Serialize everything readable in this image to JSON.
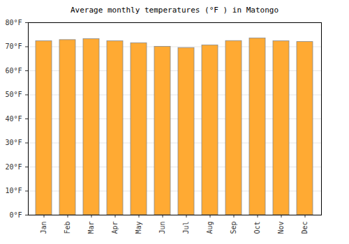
{
  "chart_data": {
    "type": "bar",
    "title": "Average monthly temperatures (°F ) in Matongo",
    "categories": [
      "Jan",
      "Feb",
      "Mar",
      "Apr",
      "May",
      "Jun",
      "Jul",
      "Aug",
      "Sep",
      "Oct",
      "Nov",
      "Dec"
    ],
    "values": [
      72.3,
      72.8,
      73.2,
      72.3,
      71.5,
      70.0,
      69.5,
      70.6,
      72.4,
      73.5,
      72.3,
      72.0
    ],
    "color": "#ffaa33",
    "ylim": [
      0,
      80
    ],
    "yticks": [
      {
        "value": 0,
        "label": "0°F"
      },
      {
        "value": 10,
        "label": "10°F"
      },
      {
        "value": 20,
        "label": "20°F"
      },
      {
        "value": 30,
        "label": "30°F"
      },
      {
        "value": 40,
        "label": "40°F"
      },
      {
        "value": 50,
        "label": "50°F"
      },
      {
        "value": 60,
        "label": "60°F"
      },
      {
        "value": 70,
        "label": "70°F"
      },
      {
        "value": 80,
        "label": "80°F"
      }
    ],
    "grid": true
  }
}
